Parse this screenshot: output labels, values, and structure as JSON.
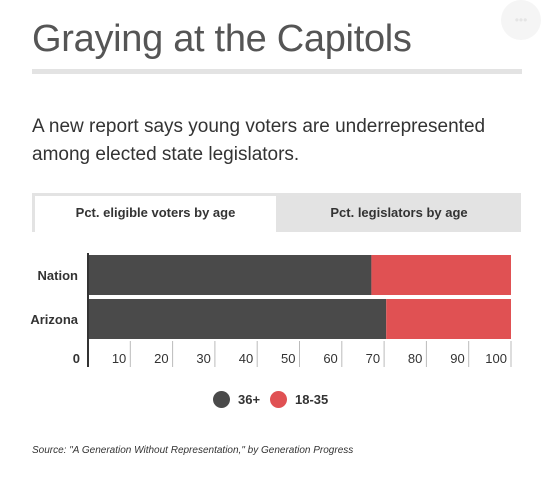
{
  "title": "Graying at the Capitols",
  "subtitle": "A new report says young voters are underrepresented among elected state legislators.",
  "menu_icon": "more-options-icon",
  "tabs": [
    {
      "label": "Pct. eligible voters by age",
      "active": true
    },
    {
      "label": "Pct. legislators by age",
      "active": false
    }
  ],
  "chart_data": {
    "type": "bar",
    "orientation": "horizontal",
    "stacked": true,
    "categories": [
      "Nation",
      "Arizona"
    ],
    "series": [
      {
        "name": "36+",
        "values": [
          67,
          70.5
        ],
        "color": "#4a4a4a"
      },
      {
        "name": "18-35",
        "values": [
          33,
          29.5
        ],
        "color": "#e05153"
      }
    ],
    "xlim": [
      0,
      100
    ],
    "xticks": [
      0,
      10,
      20,
      30,
      40,
      50,
      60,
      70,
      80,
      90,
      100
    ],
    "grid": false,
    "legend_position": "bottom"
  },
  "source": "Source: \"A Generation Without Representation,\" by Generation Progress"
}
